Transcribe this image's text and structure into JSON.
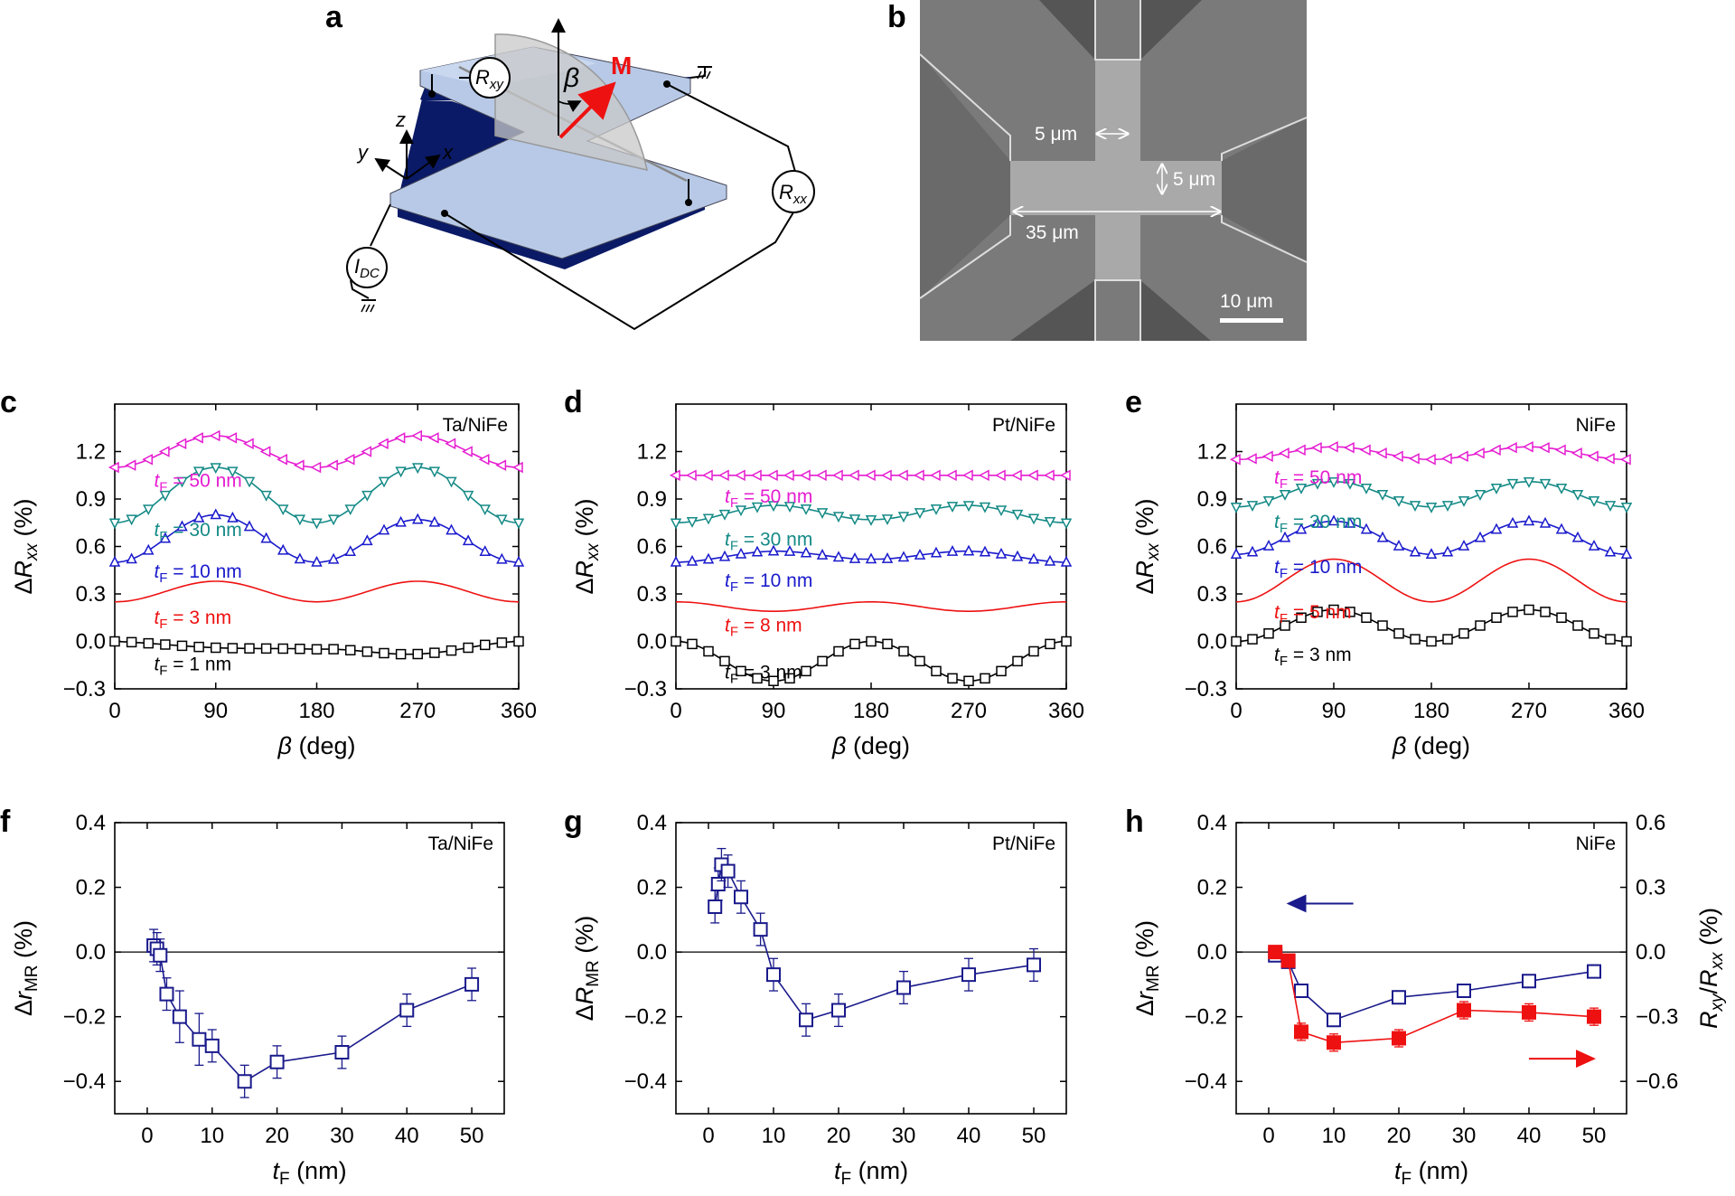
{
  "panel_letters": {
    "a": "a",
    "b": "b",
    "c": "c",
    "d": "d",
    "e": "e",
    "f": "f",
    "g": "g",
    "h": "h"
  },
  "schematic": {
    "label_rxy": "R",
    "label_rxy_sub": "xy",
    "label_rxx": "R",
    "label_rxx_sub": "xx",
    "label_idc": "I",
    "label_idc_sub": "DC",
    "label_beta": "β",
    "label_m": "M",
    "axis_x": "x",
    "axis_y": "y",
    "axis_z": "z",
    "colors": {
      "bar_top": "#b7c9e6",
      "bar_side": "#0a1a66",
      "arrow": "#ee1111"
    }
  },
  "sem": {
    "width_label": "5 μm",
    "height_label": "5 μm",
    "length_label": "35 μm",
    "scale_label": "10 μm",
    "colors": {
      "background": "#555555",
      "device": "#a9a9a9"
    }
  },
  "chart_data": [
    {
      "id": "c",
      "type": "line",
      "inset": "Ta/NiFe",
      "xlabel": "β (deg)",
      "ylabel": "ΔRxx (%)",
      "xlim": [
        0,
        360
      ],
      "ylim": [
        -0.3,
        1.5
      ],
      "xticks": [
        0,
        90,
        180,
        270,
        360
      ],
      "yticks": [
        -0.3,
        0.0,
        0.3,
        0.6,
        0.9,
        1.2
      ],
      "series": [
        {
          "name": "tF = 1 nm",
          "color": "#000000",
          "marker": "square",
          "offset": 0.0,
          "y180": -0.05,
          "y90": -0.04,
          "y270": -0.08
        },
        {
          "name": "tF = 3 nm",
          "color": "#ee1111",
          "marker": "circle",
          "offset": 0.25,
          "y180": 0.25,
          "y90": 0.38,
          "y270": 0.38
        },
        {
          "name": "tF = 10 nm",
          "color": "#1a1acc",
          "marker": "triangle-up",
          "offset": 0.5,
          "y180": 0.5,
          "y90": 0.8,
          "y270": 0.77
        },
        {
          "name": "tF = 30 nm",
          "color": "#148a86",
          "marker": "triangle-down",
          "offset": 0.75,
          "y180": 0.75,
          "y90": 1.1,
          "y270": 1.1
        },
        {
          "name": "tF = 50 nm",
          "color": "#e51cd1",
          "marker": "triangle-left",
          "offset": 1.1,
          "y180": 1.1,
          "y90": 1.3,
          "y270": 1.3
        }
      ]
    },
    {
      "id": "d",
      "type": "line",
      "inset": "Pt/NiFe",
      "xlabel": "β (deg)",
      "ylabel": "ΔRxx (%)",
      "xlim": [
        0,
        360
      ],
      "ylim": [
        -0.3,
        1.5
      ],
      "xticks": [
        0,
        90,
        180,
        270,
        360
      ],
      "yticks": [
        -0.3,
        0.0,
        0.3,
        0.6,
        0.9,
        1.2
      ],
      "series": [
        {
          "name": "tF = 3 nm",
          "color": "#000000",
          "marker": "square",
          "offset": 0.0,
          "y180": 0.0,
          "y90": -0.25,
          "y270": -0.25
        },
        {
          "name": "tF = 8 nm",
          "color": "#ee1111",
          "marker": "circle",
          "offset": 0.25,
          "y180": 0.25,
          "y90": 0.19,
          "y270": 0.19
        },
        {
          "name": "tF = 10 nm",
          "color": "#1a1acc",
          "marker": "triangle-up",
          "offset": 0.5,
          "y180": 0.52,
          "y90": 0.57,
          "y270": 0.57
        },
        {
          "name": "tF = 30 nm",
          "color": "#148a86",
          "marker": "triangle-down",
          "offset": 0.75,
          "y180": 0.77,
          "y90": 0.86,
          "y270": 0.86
        },
        {
          "name": "tF = 50 nm",
          "color": "#e51cd1",
          "marker": "triangle-left",
          "offset": 1.05,
          "y180": 1.05,
          "y90": 1.05,
          "y270": 1.05
        }
      ]
    },
    {
      "id": "e",
      "type": "line",
      "inset": "NiFe",
      "xlabel": "β (deg)",
      "ylabel": "ΔRxx (%)",
      "xlim": [
        0,
        360
      ],
      "ylim": [
        -0.3,
        1.5
      ],
      "xticks": [
        0,
        90,
        180,
        270,
        360
      ],
      "yticks": [
        -0.3,
        0.0,
        0.3,
        0.6,
        0.9,
        1.2
      ],
      "series": [
        {
          "name": "tF = 3 nm",
          "color": "#000000",
          "marker": "square",
          "offset": 0.0,
          "y180": 0.0,
          "y90": 0.2,
          "y270": 0.2
        },
        {
          "name": "tF = 5 nm",
          "color": "#ee1111",
          "marker": "circle",
          "offset": 0.25,
          "y180": 0.25,
          "y90": 0.52,
          "y270": 0.52
        },
        {
          "name": "tF = 10 nm",
          "color": "#1a1acc",
          "marker": "triangle-up",
          "offset": 0.55,
          "y180": 0.55,
          "y90": 0.76,
          "y270": 0.76
        },
        {
          "name": "tF = 30 nm",
          "color": "#148a86",
          "marker": "triangle-down",
          "offset": 0.85,
          "y180": 0.85,
          "y90": 1.01,
          "y270": 1.01
        },
        {
          "name": "tF = 50 nm",
          "color": "#e51cd1",
          "marker": "triangle-left",
          "offset": 1.15,
          "y180": 1.15,
          "y90": 1.23,
          "y270": 1.23
        }
      ]
    },
    {
      "id": "f",
      "type": "scatter",
      "inset": "Ta/NiFe",
      "xlabel": "tF (nm)",
      "ylabel": "ΔrMR (%)",
      "xlim": [
        -5,
        55
      ],
      "ylim": [
        -0.5,
        0.4
      ],
      "xticks": [
        0,
        10,
        20,
        30,
        40,
        50
      ],
      "yticks": [
        -0.4,
        -0.2,
        0.0,
        0.2,
        0.4
      ],
      "series": [
        {
          "color": "#1a1a8c",
          "marker": "square-open",
          "x": [
            1,
            1.5,
            2,
            3,
            5,
            8,
            10,
            15,
            20,
            30,
            40,
            50
          ],
          "y": [
            0.02,
            0.01,
            -0.01,
            -0.13,
            -0.2,
            -0.27,
            -0.29,
            -0.4,
            -0.34,
            -0.31,
            -0.18,
            -0.1
          ],
          "err": [
            0.05,
            0.05,
            0.05,
            0.05,
            0.08,
            0.08,
            0.05,
            0.05,
            0.05,
            0.05,
            0.05,
            0.05
          ]
        }
      ]
    },
    {
      "id": "g",
      "type": "scatter",
      "inset": "Pt/NiFe",
      "xlabel": "tF (nm)",
      "ylabel": "ΔRMR (%)",
      "xlim": [
        -5,
        55
      ],
      "ylim": [
        -0.5,
        0.4
      ],
      "xticks": [
        0,
        10,
        20,
        30,
        40,
        50
      ],
      "yticks": [
        -0.4,
        -0.2,
        0.0,
        0.2,
        0.4
      ],
      "series": [
        {
          "color": "#1a1a8c",
          "marker": "square-open",
          "x": [
            1,
            1.5,
            2,
            3,
            5,
            8,
            10,
            15,
            20,
            30,
            40,
            50
          ],
          "y": [
            0.14,
            0.21,
            0.27,
            0.25,
            0.17,
            0.07,
            -0.07,
            -0.21,
            -0.18,
            -0.11,
            -0.07,
            -0.04
          ],
          "err": [
            0.05,
            0.05,
            0.05,
            0.05,
            0.05,
            0.05,
            0.05,
            0.05,
            0.05,
            0.05,
            0.05,
            0.05
          ]
        }
      ]
    },
    {
      "id": "h",
      "type": "scatter",
      "inset": "NiFe",
      "xlabel": "tF (nm)",
      "ylabel": "ΔrMR (%)",
      "y2label": "Rxy/Rxx (%)",
      "xlim": [
        -5,
        55
      ],
      "ylim": [
        -0.5,
        0.4
      ],
      "y2lim": [
        -0.75,
        0.6
      ],
      "xticks": [
        0,
        10,
        20,
        30,
        40,
        50
      ],
      "yticks": [
        -0.4,
        -0.2,
        0.0,
        0.2,
        0.4
      ],
      "y2ticks": [
        -0.6,
        -0.3,
        0.0,
        0.3,
        0.6
      ],
      "series": [
        {
          "axis": "left",
          "color": "#1a1a8c",
          "marker": "square-open",
          "x": [
            1,
            3,
            5,
            10,
            20,
            30,
            40,
            50
          ],
          "y": [
            -0.01,
            -0.03,
            -0.12,
            -0.21,
            -0.14,
            -0.12,
            -0.09,
            -0.06
          ],
          "err": [
            0.02,
            0.02,
            0.02,
            0.02,
            0.02,
            0.02,
            0.02,
            0.02
          ]
        },
        {
          "axis": "right",
          "color": "#ee1111",
          "marker": "square-filled",
          "x": [
            1,
            3,
            5,
            10,
            20,
            30,
            40,
            50
          ],
          "y": [
            0.0,
            -0.04,
            -0.37,
            -0.42,
            -0.4,
            -0.27,
            -0.28,
            -0.3
          ],
          "err": [
            0.02,
            0.02,
            0.04,
            0.04,
            0.04,
            0.04,
            0.04,
            0.04
          ]
        }
      ]
    }
  ]
}
